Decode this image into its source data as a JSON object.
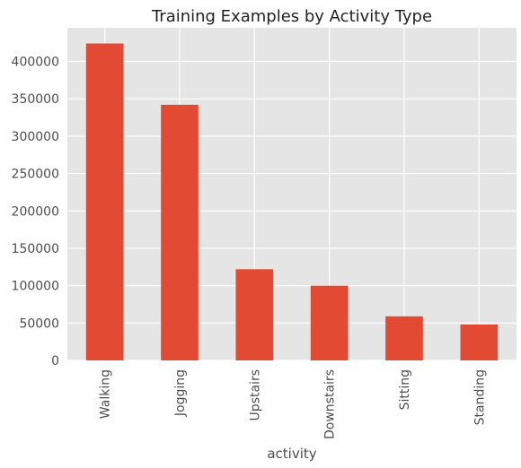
{
  "chart_data": {
    "type": "bar",
    "title": "Training Examples by Activity Type",
    "xlabel": "activity",
    "ylabel": "",
    "categories": [
      "Walking",
      "Jogging",
      "Upstairs",
      "Downstairs",
      "Sitting",
      "Standing"
    ],
    "values": [
      424000,
      342000,
      122000,
      100000,
      59000,
      48000
    ],
    "ylim": [
      0,
      445000
    ],
    "yticks": [
      0,
      50000,
      100000,
      150000,
      200000,
      250000,
      300000,
      350000,
      400000
    ],
    "grid": true,
    "legend": "none",
    "colors": {
      "bar": "#E24A33",
      "plot_background": "#E5E5E5",
      "grid": "#FFFFFF",
      "text": "#4D4D4D"
    }
  }
}
